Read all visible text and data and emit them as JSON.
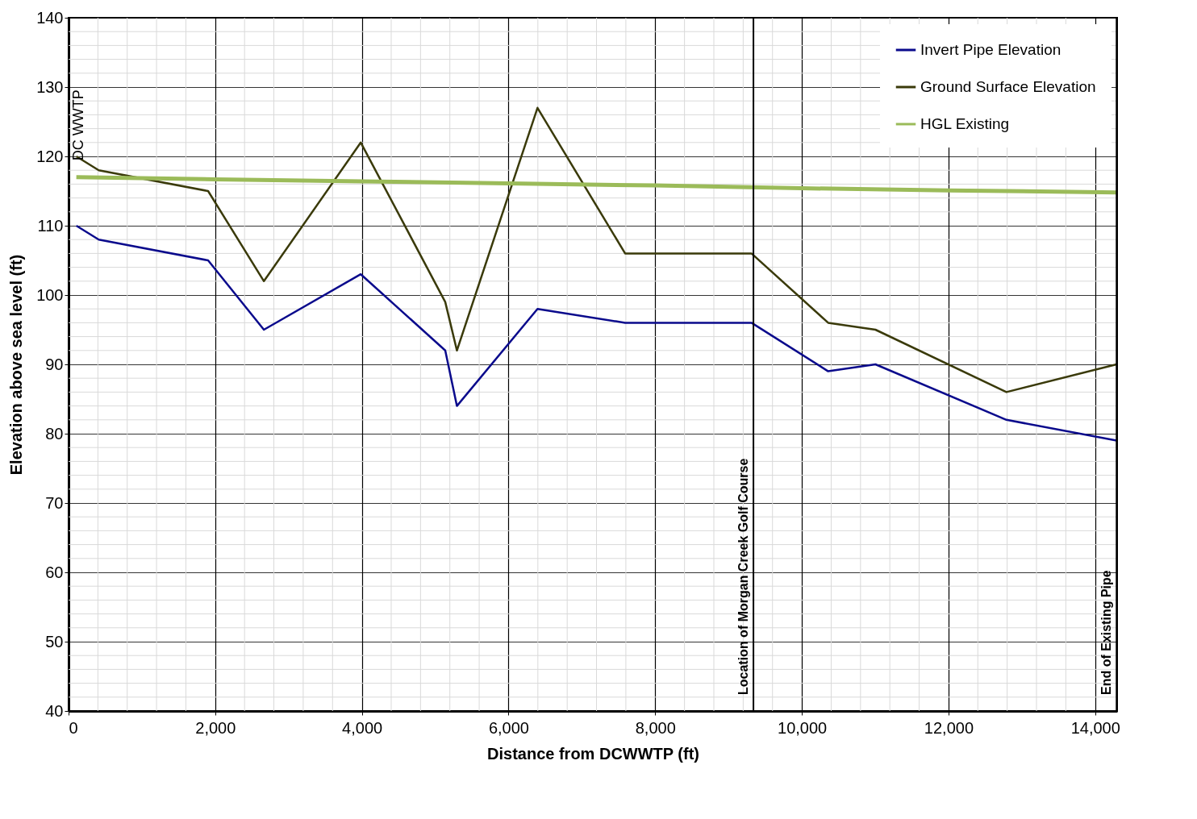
{
  "chart_data": {
    "type": "line",
    "xlabel": "Distance from DCWWTP (ft)",
    "ylabel": "Elevation above sea level (ft)",
    "xlim": [
      0,
      14300
    ],
    "ylim": [
      40,
      140
    ],
    "xticks": [
      {
        "value": 0,
        "label": "0"
      },
      {
        "value": 2000,
        "label": "2,000"
      },
      {
        "value": 4000,
        "label": "4,000"
      },
      {
        "value": 6000,
        "label": "6,000"
      },
      {
        "value": 8000,
        "label": "8,000"
      },
      {
        "value": 10000,
        "label": "10,000"
      },
      {
        "value": 12000,
        "label": "12,000"
      },
      {
        "value": 14000,
        "label": "14,000"
      }
    ],
    "yticks": [
      40,
      50,
      60,
      70,
      80,
      90,
      100,
      110,
      120,
      130,
      140
    ],
    "grid": true,
    "legend": "top right",
    "marker": "none",
    "line_style": "solid",
    "series": [
      {
        "name": "Invert Pipe Elevation",
        "color": "#0a0a8c",
        "x": [
          106,
          412,
          1903,
          2664,
          3985,
          5137,
          5296,
          6395,
          7590,
          9313,
          10359,
          11004,
          12790,
          14292
        ],
        "values": [
          110,
          108,
          105,
          95,
          103,
          92,
          84,
          98,
          96,
          96,
          89,
          90,
          82,
          79
        ]
      },
      {
        "name": "Ground Surface Elevation",
        "color": "#3a3a0a",
        "x": [
          106,
          412,
          1903,
          2664,
          3985,
          5137,
          5296,
          6395,
          7590,
          9313,
          10359,
          11004,
          12790,
          14292
        ],
        "values": [
          120,
          118,
          115,
          102,
          122,
          99,
          92,
          127,
          106,
          106,
          96,
          95,
          86,
          90
        ]
      },
      {
        "name": "HGL Existing",
        "color": "#9bbb59",
        "x": [
          106,
          2000,
          4000,
          6000,
          8000,
          10000,
          12000,
          14292
        ],
        "values": [
          117,
          116.7,
          116.4,
          116.1,
          115.8,
          115.4,
          115.1,
          114.8
        ]
      }
    ],
    "ref_lines": [
      {
        "axis": "x",
        "value": 9340,
        "label": "Location of Morgan Creek Golf Course"
      },
      {
        "axis": "x",
        "value": 14292,
        "label": "End of Existing Pipe"
      }
    ],
    "annotations": [
      "DC WWTP"
    ]
  }
}
